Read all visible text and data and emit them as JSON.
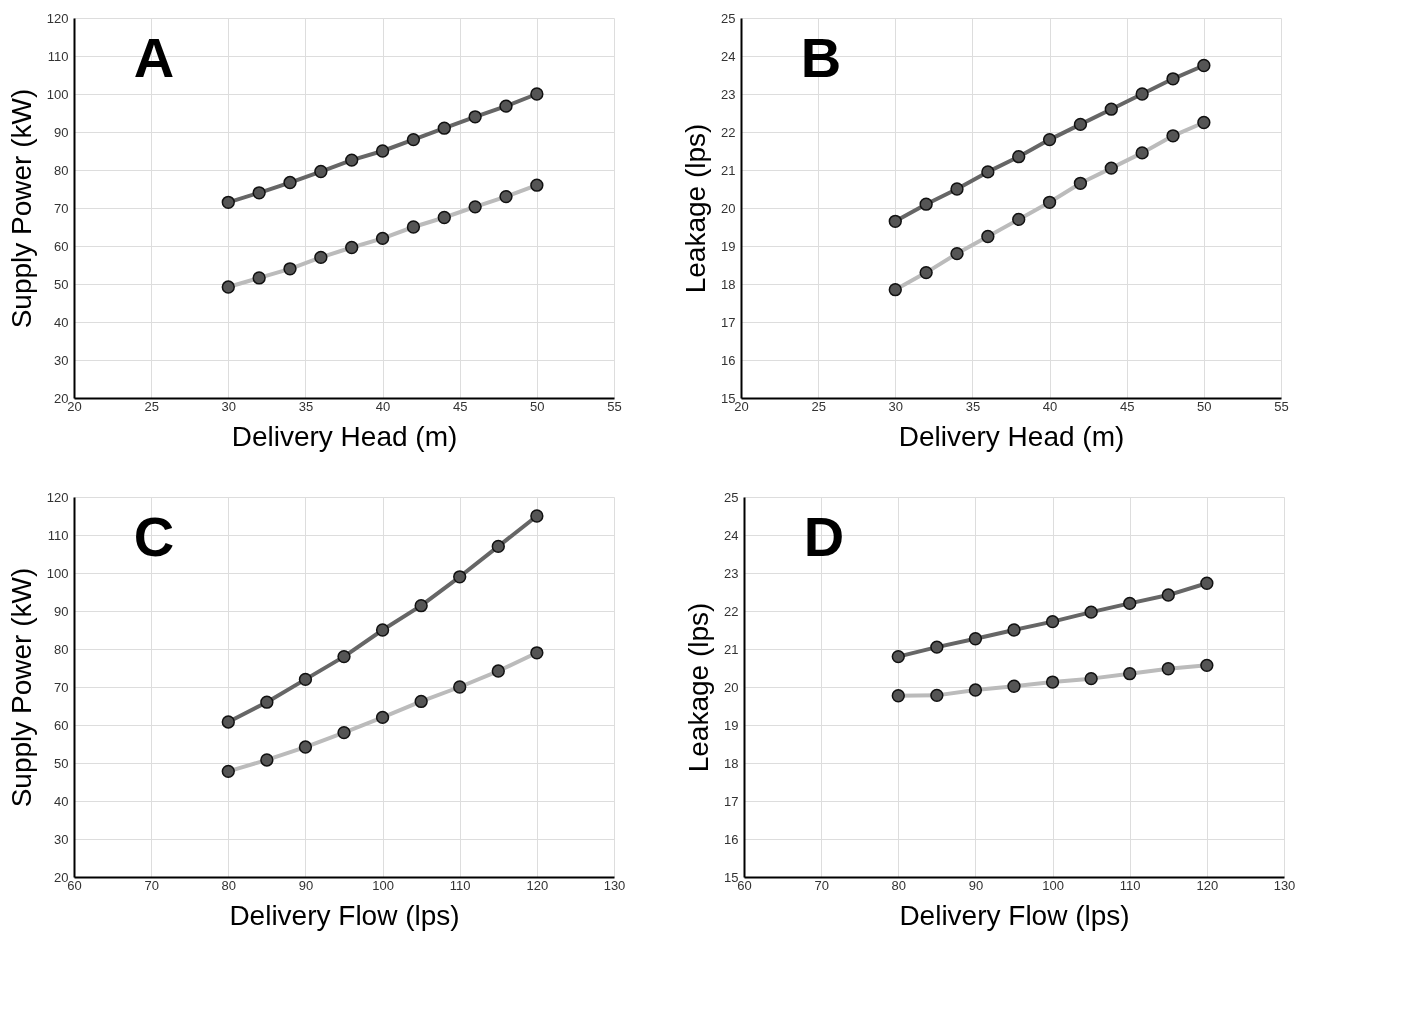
{
  "chart_data": [
    {
      "type": "line",
      "annotations": [
        "A"
      ],
      "xlabel": "Delivery Head (m)",
      "ylabel": "Supply Power (kW)",
      "xlim": [
        20,
        55
      ],
      "xticks": [
        20,
        25,
        30,
        35,
        40,
        45,
        50,
        55
      ],
      "ylim": [
        20,
        120
      ],
      "yticks": [
        20,
        30,
        40,
        50,
        60,
        70,
        80,
        90,
        100,
        110,
        120
      ],
      "grid": true,
      "legend": false,
      "marker": "circle",
      "line_style": "solid",
      "x": [
        30,
        32,
        34,
        36,
        38,
        40,
        42,
        44,
        46,
        48,
        50
      ],
      "series": [
        {
          "color": "#666666",
          "values": [
            71.5,
            74,
            76.7,
            79.6,
            82.6,
            85,
            88,
            91,
            94,
            96.8,
            100
          ]
        },
        {
          "color": "#bbbbbb",
          "values": [
            49.2,
            51.6,
            54,
            57,
            59.6,
            62,
            65,
            67.5,
            70.3,
            73,
            76
          ]
        }
      ]
    },
    {
      "type": "line",
      "annotations": [
        "B"
      ],
      "xlabel": "Delivery Head (m)",
      "ylabel": "Leakage (lps)",
      "xlim": [
        20,
        55
      ],
      "xticks": [
        20,
        25,
        30,
        35,
        40,
        45,
        50,
        55
      ],
      "ylim": [
        15,
        25
      ],
      "yticks": [
        15,
        16,
        17,
        18,
        19,
        20,
        21,
        22,
        23,
        24,
        25
      ],
      "grid": true,
      "legend": false,
      "marker": "circle",
      "line_style": "solid",
      "x": [
        30,
        32,
        34,
        36,
        38,
        40,
        42,
        44,
        46,
        48,
        50
      ],
      "series": [
        {
          "color": "#666666",
          "values": [
            19.65,
            20.1,
            20.5,
            20.95,
            21.35,
            21.8,
            22.2,
            22.6,
            23.0,
            23.4,
            23.75
          ]
        },
        {
          "color": "#bbbbbb",
          "values": [
            17.85,
            18.3,
            18.8,
            19.25,
            19.7,
            20.15,
            20.65,
            21.05,
            21.45,
            21.9,
            22.25
          ]
        }
      ]
    },
    {
      "type": "line",
      "annotations": [
        "C"
      ],
      "xlabel": "Delivery Flow (lps)",
      "ylabel": "Supply Power (kW)",
      "xlim": [
        60,
        130
      ],
      "xticks": [
        60,
        70,
        80,
        90,
        100,
        110,
        120,
        130
      ],
      "ylim": [
        20,
        120
      ],
      "yticks": [
        20,
        30,
        40,
        50,
        60,
        70,
        80,
        90,
        100,
        110,
        120
      ],
      "grid": true,
      "legend": false,
      "marker": "circle",
      "line_style": "solid",
      "x": [
        80,
        85,
        90,
        95,
        100,
        105,
        110,
        115,
        120
      ],
      "series": [
        {
          "color": "#666666",
          "values": [
            60.8,
            66,
            72,
            78,
            85,
            91.4,
            99,
            107,
            115
          ]
        },
        {
          "color": "#bbbbbb",
          "values": [
            47.8,
            50.8,
            54.2,
            58,
            62,
            66.2,
            70,
            74.2,
            79
          ]
        }
      ]
    },
    {
      "type": "line",
      "annotations": [
        "D"
      ],
      "xlabel": "Delivery Flow (lps)",
      "ylabel": "Leakage (lps)",
      "xlim": [
        60,
        130
      ],
      "xticks": [
        60,
        70,
        80,
        90,
        100,
        110,
        120,
        130
      ],
      "ylim": [
        15,
        25
      ],
      "yticks": [
        15,
        16,
        17,
        18,
        19,
        20,
        21,
        22,
        23,
        24,
        25
      ],
      "grid": true,
      "legend": false,
      "marker": "circle",
      "line_style": "solid",
      "x": [
        80,
        85,
        90,
        95,
        100,
        105,
        110,
        115,
        120
      ],
      "series": [
        {
          "color": "#666666",
          "values": [
            20.8,
            21.05,
            21.27,
            21.5,
            21.72,
            21.97,
            22.2,
            22.42,
            22.73
          ]
        },
        {
          "color": "#bbbbbb",
          "values": [
            19.77,
            19.78,
            19.92,
            20.02,
            20.13,
            20.22,
            20.35,
            20.48,
            20.57
          ]
        }
      ]
    }
  ]
}
